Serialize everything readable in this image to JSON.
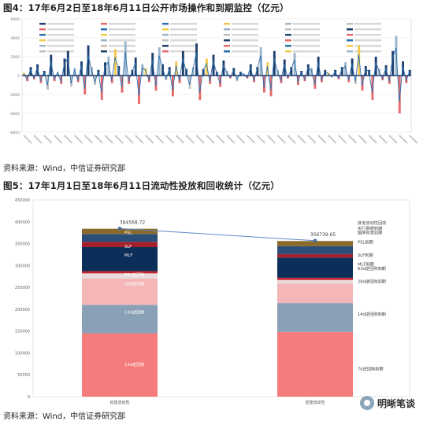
{
  "figures": {
    "fig4_title": "图4：17年6月2日至18年6月11日公开市场操作和到期监控（亿元）",
    "fig4_source": "资料来源：Wind，中信证券研究部",
    "fig5_title": "图5：17年1月1日至18年6月11日流动性投放和回收统计（亿元）",
    "fig5_source": "资料来源：Wind，中信证券研究部"
  },
  "watermark": {
    "text": "明晰笔谈",
    "icon": "wechat-logo-icon"
  },
  "chart_data": [
    {
      "type": "bar",
      "id": "fig4",
      "description_type": "bar",
      "ylim": [
        -6000,
        6000
      ],
      "yticks": [
        6000,
        4000,
        2000,
        0,
        -2000,
        -4000,
        -6000
      ],
      "legend_placement": "top",
      "legend_entries": [
        "",
        "",
        "",
        "",
        "",
        "",
        "",
        "",
        "",
        "",
        "",
        "",
        "",
        "",
        "",
        "",
        "",
        "",
        "",
        "",
        "",
        "",
        "",
        "",
        "",
        "",
        "",
        "",
        "",
        "",
        "",
        "",
        "",
        "",
        "",
        ""
      ],
      "colors": {
        "injection": "#1f3f6e",
        "maturity": "#e86a6a",
        "line": "#2a6fb0",
        "accent1": "#f2c94c",
        "accent2": "#9ab4c9",
        "accent3": "#c0c0c0"
      },
      "series": [
        {
          "values": [
            300,
            -600,
            900,
            -400,
            1200,
            -800,
            500,
            -1500,
            2200,
            -600,
            400,
            -900,
            1800,
            2600,
            -1200,
            800,
            -700,
            1500,
            -2000,
            3200,
            900,
            -1000,
            600,
            -2600,
            1400,
            2000,
            -800,
            2800,
            1000,
            -1800,
            3600,
            -900,
            600,
            1900,
            -3000,
            1200,
            800,
            -700,
            2400,
            -1600,
            3000,
            1200,
            -500,
            900,
            -2200,
            1500,
            -800,
            2600,
            700,
            -1400,
            900,
            3400,
            -2600,
            700,
            1800,
            -900,
            2200,
            400,
            -1200,
            1600,
            500,
            -300,
            800,
            -600,
            400,
            200,
            -300,
            1200,
            -700,
            900,
            3000,
            -1800,
            1400,
            -2200,
            2600,
            600,
            -800,
            1700,
            -300,
            900,
            2400,
            -1000,
            500,
            -600,
            1200,
            800,
            -1400,
            2000,
            -700,
            600,
            300,
            -200,
            600,
            -400,
            900,
            1400,
            -700,
            1800,
            -900,
            3200,
            -1600,
            1000,
            600,
            -2600,
            2000,
            700,
            -500,
            1100,
            -900,
            2600,
            4200,
            -4000,
            1500,
            -800,
            600
          ]
        }
      ]
    },
    {
      "type": "bar",
      "id": "fig5",
      "ylim": [
        0,
        450000
      ],
      "yticks": [
        0,
        50000,
        100000,
        150000,
        200000,
        250000,
        300000,
        350000,
        400000,
        450000
      ],
      "categories": [
        "投放流动性",
        "回笼流动性"
      ],
      "totals": [
        "384568.72",
        "356739.65"
      ],
      "series": [
        {
          "name": "14d逆回购",
          "color": "#f47c7c",
          "values": [
            145000,
            148000
          ]
        },
        {
          "name": "14d逆回购",
          "color": "#8aa0b6",
          "values": [
            65000,
            66000
          ]
        },
        {
          "name": "28d逆回购",
          "color": "#f4b6b6",
          "values": [
            60000,
            45000
          ]
        },
        {
          "name": "63d逆回购",
          "color": "#e8dada",
          "values": [
            12000,
            8000
          ]
        },
        {
          "name": "MLF",
          "color": "#c4242b",
          "values": [
            5000,
            5000
          ]
        },
        {
          "name": "SLF",
          "color": "#0c2f5a",
          "values": [
            55000,
            46000
          ]
        },
        {
          "name": "PSL",
          "color": "#a4202a",
          "values": [
            12000,
            8000
          ]
        },
        {
          "name": "国库现金定存",
          "color": "#2a4e78",
          "values": [
            18000,
            18000
          ]
        },
        {
          "name": "央行票据",
          "color": "#8a6a2a",
          "values": [
            12000,
            12000
          ]
        }
      ],
      "labels_left": [
        {
          "text": "14d逆回购",
          "value": 70000
        },
        {
          "text": "14d逆回购",
          "value": 190000
        },
        {
          "text": "28d逆回购",
          "value": 255000
        },
        {
          "text": "63d逆回购",
          "value": 275000
        },
        {
          "text": "MLF",
          "value": 320000
        },
        {
          "text": "SLF",
          "value": 340000
        },
        {
          "text": "PSL",
          "value": 372000
        },
        {
          "text": "国库现金定存",
          "value": 386000
        },
        {
          "text": "央行票据",
          "value": 398000
        }
      ],
      "labels_right": [
        {
          "text": "7d逆回购到期",
          "value": 60000
        },
        {
          "text": "14d逆回购到期",
          "value": 185000
        },
        {
          "text": "28d逆回购到期",
          "value": 260000
        },
        {
          "text": "63d逆回购到期",
          "value": 290000
        },
        {
          "text": "MLF到期",
          "value": 300000
        },
        {
          "text": "SLF到期",
          "value": 320000
        },
        {
          "text": "PSL到期",
          "value": 350000
        },
        {
          "text": "国库现金到期",
          "value": 372000
        },
        {
          "text": "央行票据到期",
          "value": 382000
        },
        {
          "text": "其他流动性回收",
          "value": 394000
        }
      ]
    }
  ]
}
